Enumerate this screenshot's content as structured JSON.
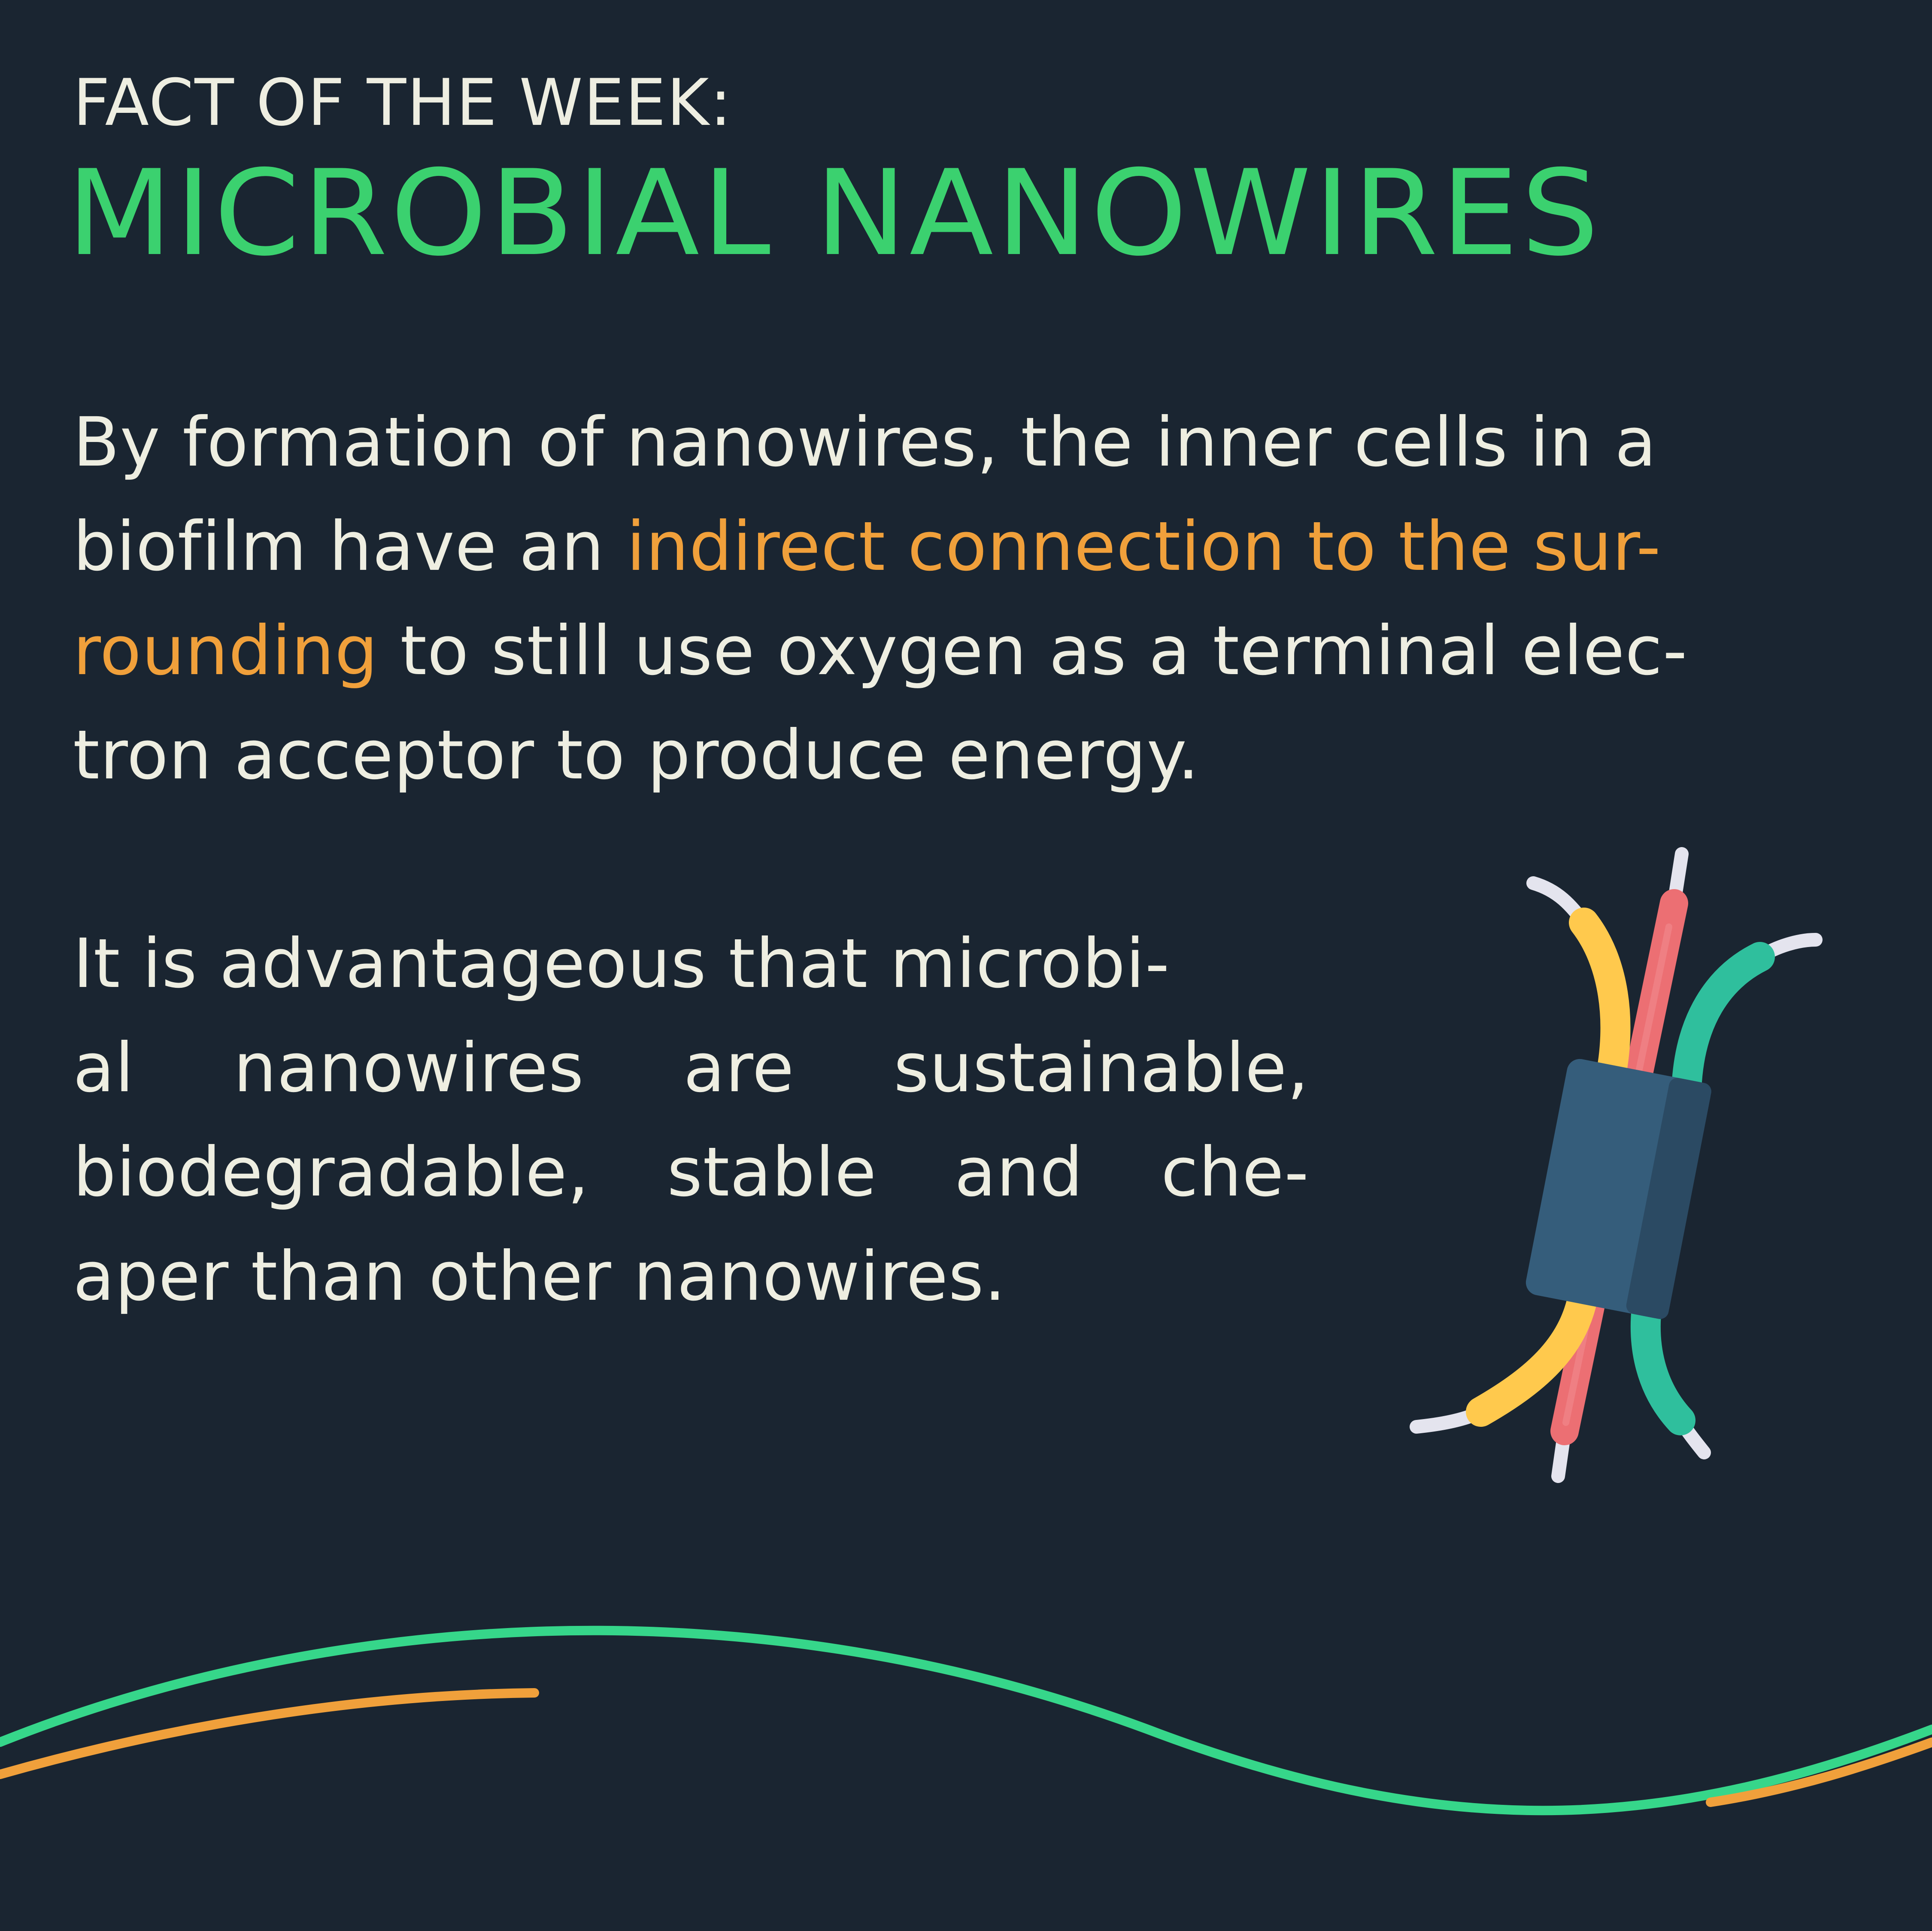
{
  "header": {
    "eyebrow": "FACT OF THE WEEK:",
    "title": "MICROBIAL NANOWIRES"
  },
  "paragraph1": {
    "line1": "By formation of nanowires, the inner cells in a",
    "line2_pre": "biofilm have an ",
    "line2_highlight": "indirect connection to the sur-",
    "line3_highlight": "rounding",
    "line3_post": " to still use oxygen as a terminal elec-",
    "line4": "tron acceptor to produce energy."
  },
  "paragraph2": {
    "line1": "It is advantageous that microbi-",
    "line2_words": [
      "al",
      "nanowires",
      "are",
      "sustainable,"
    ],
    "line3_words": [
      "biodegradable,",
      "stable",
      "and",
      "che-"
    ],
    "line4": "aper than other nanowires."
  },
  "illustration": {
    "icon": "nanowire-cable-bundle-icon",
    "colors": {
      "yellow": "#ffc94d",
      "red": "#ec6f73",
      "teal": "#2fbf9d",
      "tip": "#e4e4ee",
      "sleeve": "#355d7b",
      "sleeve_shade": "#2b4a63"
    }
  },
  "colors": {
    "background": "#1a2531",
    "text": "#eeeee1",
    "title_green": "#3bd16f",
    "highlight_orange": "#f0a03b"
  }
}
